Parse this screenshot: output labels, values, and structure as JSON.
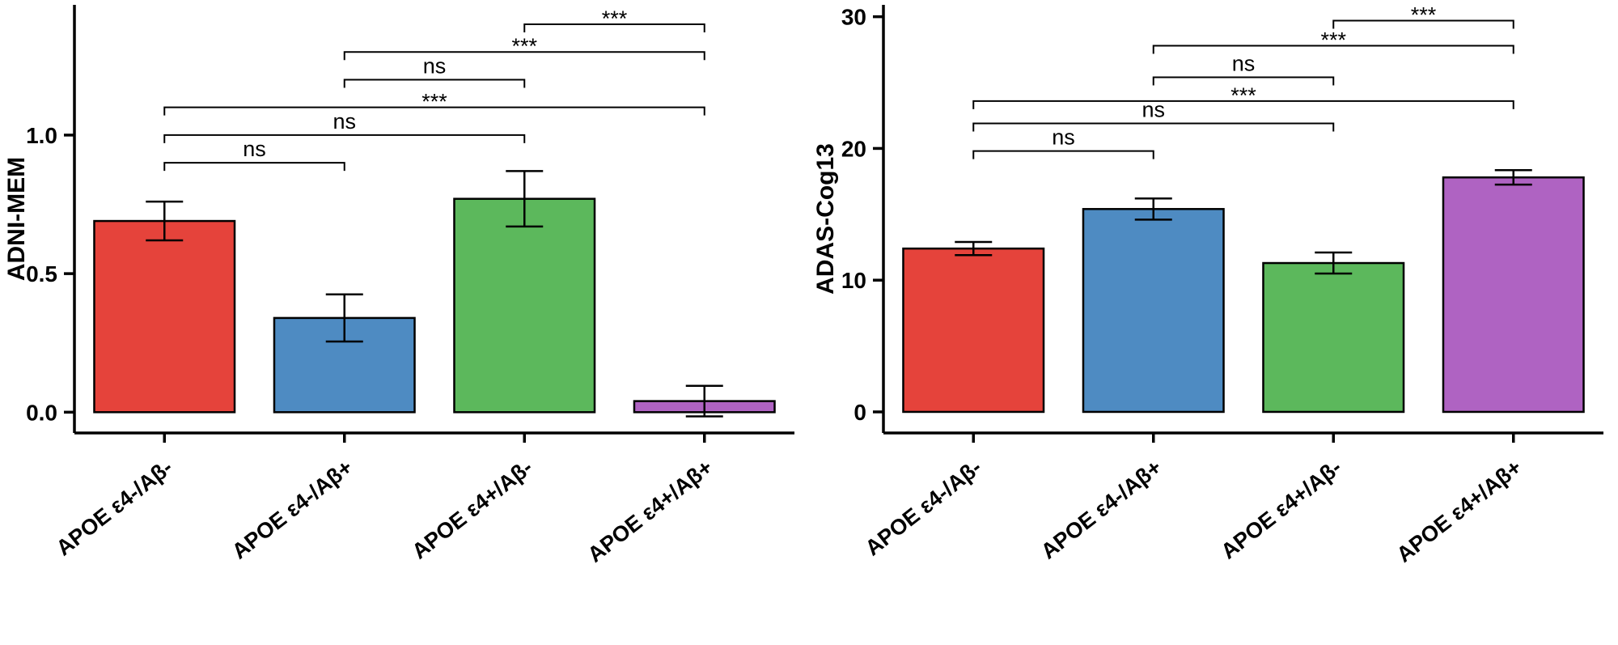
{
  "figure": {
    "background": "#FFFFFF",
    "axis_color": "#000000",
    "bar_outline_color": "#000000",
    "error_bar_color": "#000000",
    "bracket_color": "#000000",
    "text_color": "#000000"
  },
  "chart_data": [
    {
      "type": "bar",
      "panel": "left",
      "title": "",
      "xlabel": "",
      "ylabel": "ADNI-MEM",
      "categories": [
        "APOE ε4-/Aβ-",
        "APOE ε4-/Aβ+",
        "APOE ε4+/Aβ-",
        "APOE ε4+/Aβ+"
      ],
      "values": [
        0.69,
        0.34,
        0.77,
        0.04
      ],
      "error_low": [
        0.07,
        0.085,
        0.1,
        0.055
      ],
      "error_high": [
        0.07,
        0.085,
        0.1,
        0.055
      ],
      "bar_colors": [
        "#E5433B",
        "#4E8BC2",
        "#5CB85C",
        "#AF63C2"
      ],
      "ylim": [
        -0.075,
        1.47
      ],
      "yticks": [
        0,
        0.5,
        1
      ],
      "ytick_labels": [
        "0.0",
        "0.5",
        "1.0"
      ],
      "grid": false,
      "legend": null,
      "significance_brackets": [
        {
          "group1": 0,
          "group2": 1,
          "label": "ns",
          "y": 0.9
        },
        {
          "group1": 0,
          "group2": 2,
          "label": "ns",
          "y": 1.0
        },
        {
          "group1": 0,
          "group2": 3,
          "label": "***",
          "y": 1.1
        },
        {
          "group1": 1,
          "group2": 2,
          "label": "ns",
          "y": 1.2
        },
        {
          "group1": 1,
          "group2": 3,
          "label": "***",
          "y": 1.3
        },
        {
          "group1": 2,
          "group2": 3,
          "label": "***",
          "y": 1.4
        }
      ]
    },
    {
      "type": "bar",
      "panel": "right",
      "title": "",
      "xlabel": "",
      "ylabel": "ADAS-Cog13",
      "categories": [
        "APOE ε4-/Aβ-",
        "APOE ε4-/Aβ+",
        "APOE ε4+/Aβ-",
        "APOE ε4+/Aβ+"
      ],
      "values": [
        12.4,
        15.4,
        11.3,
        17.8
      ],
      "error_low": [
        0.5,
        0.8,
        0.8,
        0.55
      ],
      "error_high": [
        0.5,
        0.8,
        0.8,
        0.55
      ],
      "bar_colors": [
        "#E5433B",
        "#4E8BC2",
        "#5CB85C",
        "#AF63C2"
      ],
      "ylim": [
        -1.6,
        30.9
      ],
      "yticks": [
        0,
        10,
        20,
        30
      ],
      "ytick_labels": [
        "0",
        "10",
        "20",
        "30"
      ],
      "grid": false,
      "legend": null,
      "significance_brackets": [
        {
          "group1": 0,
          "group2": 1,
          "label": "ns",
          "y": 19.8
        },
        {
          "group1": 0,
          "group2": 2,
          "label": "ns",
          "y": 21.9
        },
        {
          "group1": 0,
          "group2": 3,
          "label": "***",
          "y": 23.6
        },
        {
          "group1": 1,
          "group2": 2,
          "label": "ns",
          "y": 25.4
        },
        {
          "group1": 1,
          "group2": 3,
          "label": "***",
          "y": 27.8
        },
        {
          "group1": 2,
          "group2": 3,
          "label": "***",
          "y": 29.7
        }
      ]
    }
  ]
}
